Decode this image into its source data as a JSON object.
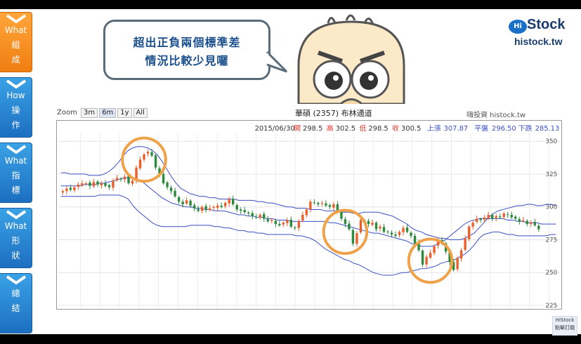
{
  "sidebar": {
    "items": [
      {
        "en": "What",
        "zh1": "組",
        "zh2": "成",
        "active": true
      },
      {
        "en": "How",
        "zh1": "操",
        "zh2": "作",
        "active": false
      },
      {
        "en": "What",
        "zh1": "指",
        "zh2": "標",
        "active": false
      },
      {
        "en": "What",
        "zh1": "形",
        "zh2": "狀",
        "active": false
      },
      {
        "en": "",
        "zh1": "總",
        "zh2": "結",
        "active": false
      }
    ]
  },
  "bubble": {
    "line1": "超出正負兩個標準差",
    "line2": "情況比較少見囉"
  },
  "logo": {
    "hi": "Hi",
    "brand": "Stock",
    "url": "histock.tw"
  },
  "zoom": {
    "label": "Zoom",
    "buttons": [
      "3m",
      "6m",
      "1y",
      "All"
    ],
    "selected": "6m"
  },
  "corner_logo": {
    "brand": "HiStock",
    "label": "點擊訂閱"
  },
  "colors": {
    "up": "#e8612c",
    "down": "#2e8b3d",
    "band": "#3b4fc4",
    "highlight": "#f0a24a"
  },
  "chart_data": {
    "type": "candlestick",
    "title": "華碩 (2357) 布林通道",
    "source": "嗨投資 histock.tw",
    "info": {
      "date": "2015/06/30",
      "open_label": "開",
      "open": "298.5",
      "high_label": "高",
      "high": "302.5",
      "low_label": "低",
      "low": "298.5",
      "close_label": "收",
      "close": "300.5",
      "upper_label": "上漲",
      "upper": "307.87",
      "mid_label": "平盤",
      "mid": "296.50",
      "lower_label": "下跌",
      "lower": "285.13"
    },
    "ylim": [
      225,
      355
    ],
    "yticks": [
      225,
      250,
      275,
      300,
      325,
      350
    ],
    "grid": true,
    "n_days": 124,
    "closes": [
      312,
      314,
      313,
      315,
      317,
      318,
      318,
      316,
      319,
      317,
      318,
      316,
      315,
      320,
      322,
      321,
      323,
      318,
      320,
      330,
      336,
      340,
      342,
      339,
      330,
      325,
      318,
      315,
      312,
      308,
      304,
      302,
      305,
      301,
      299,
      297,
      300,
      298,
      299,
      300,
      301,
      300,
      303,
      306,
      302,
      298,
      297,
      296,
      295,
      293,
      292,
      294,
      291,
      289,
      290,
      287,
      286,
      288,
      290,
      285,
      284,
      289,
      294,
      298,
      304,
      303,
      302,
      303,
      301,
      300,
      302,
      296,
      291,
      287,
      283,
      272,
      280,
      290,
      289,
      287,
      288,
      283,
      285,
      281,
      281,
      279,
      278,
      281,
      284,
      281,
      278,
      272,
      267,
      256,
      262,
      265,
      270,
      275,
      272,
      266,
      258,
      252,
      261,
      267,
      276,
      285,
      288,
      291,
      290,
      292,
      294,
      291,
      293,
      292,
      295,
      294,
      292,
      291,
      289,
      290,
      287,
      288,
      286,
      283
    ],
    "upper_band": [
      326,
      326,
      325,
      325,
      325,
      325,
      324,
      324,
      324,
      325,
      327,
      330,
      334,
      339,
      343,
      345,
      346,
      346,
      345,
      343,
      340,
      335,
      329,
      323,
      318,
      314,
      312,
      310,
      309,
      308,
      308,
      307,
      307,
      306,
      306,
      306,
      306,
      305,
      305,
      305,
      305,
      304,
      304,
      303,
      303,
      302,
      301,
      300,
      300,
      299,
      299,
      299,
      298,
      298,
      298,
      297,
      297,
      297,
      296,
      296,
      296,
      295,
      295,
      296,
      296,
      296,
      296,
      295,
      294,
      293,
      291,
      289,
      287,
      284,
      282,
      281,
      279,
      278,
      277,
      276,
      276,
      275,
      275,
      275,
      276,
      278,
      280,
      284,
      288,
      292,
      295,
      297,
      298,
      299,
      300,
      301,
      301,
      302,
      302,
      301,
      301,
      302,
      302,
      301
    ],
    "mid_band": [
      316,
      316,
      316,
      316,
      316,
      317,
      317,
      317,
      318,
      318,
      319,
      320,
      321,
      322,
      322,
      322,
      321,
      319,
      316,
      313,
      310,
      307,
      305,
      303,
      302,
      301,
      300,
      300,
      299,
      299,
      298,
      298,
      297,
      297,
      297,
      296,
      295,
      294,
      294,
      293,
      293,
      292,
      292,
      291,
      291,
      290,
      290,
      290,
      289,
      289,
      289,
      289,
      289,
      289,
      289,
      289,
      288,
      288,
      287,
      286,
      285,
      284,
      283,
      282,
      281,
      280,
      280,
      279,
      278,
      277,
      276,
      275,
      274,
      272,
      271,
      270,
      270,
      270,
      271,
      273,
      275,
      278,
      281,
      284,
      287,
      289,
      290,
      291,
      291,
      291,
      291,
      291,
      291,
      290,
      290,
      289,
      289,
      288,
      288,
      288,
      287,
      287,
      287,
      287
    ],
    "lower_band": [
      308,
      308,
      308,
      308,
      308,
      308,
      308,
      308,
      309,
      309,
      309,
      309,
      309,
      308,
      306,
      301,
      297,
      294,
      291,
      288,
      286,
      285,
      285,
      285,
      285,
      285,
      285,
      286,
      286,
      286,
      286,
      286,
      285,
      285,
      284,
      284,
      283,
      282,
      282,
      281,
      281,
      280,
      280,
      279,
      279,
      279,
      279,
      279,
      279,
      278,
      278,
      277,
      276,
      274,
      271,
      268,
      266,
      264,
      262,
      260,
      259,
      257,
      256,
      254,
      252,
      250,
      249,
      248,
      248,
      248,
      249,
      250,
      250,
      251,
      252,
      253,
      253,
      254,
      255,
      257,
      258,
      259,
      260,
      262,
      264,
      267,
      271,
      276,
      279,
      280,
      281,
      281,
      280,
      279,
      279,
      278,
      278,
      278,
      278,
      278,
      278,
      278,
      279,
      279
    ],
    "highlights": [
      {
        "day": 21,
        "value": 336
      },
      {
        "day": 73,
        "value": 281
      },
      {
        "day": 95,
        "value": 259
      }
    ]
  }
}
